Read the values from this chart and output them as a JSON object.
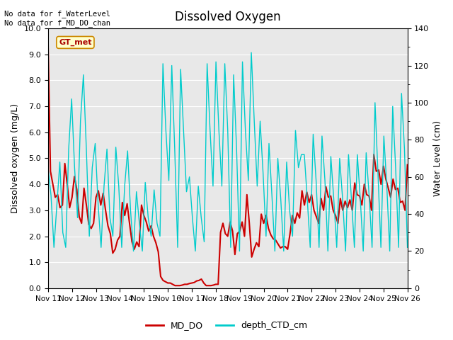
{
  "title": "Dissolved Oxygen",
  "ylabel_left": "Dissolved oxygen (mg/L)",
  "ylabel_right": "Water Level (cm)",
  "ylim_left": [
    0,
    10.0
  ],
  "ylim_right": [
    0,
    140
  ],
  "yticks_left": [
    0.0,
    1.0,
    2.0,
    3.0,
    4.0,
    5.0,
    6.0,
    7.0,
    8.0,
    9.0,
    10.0
  ],
  "yticks_right": [
    0,
    20,
    40,
    60,
    80,
    100,
    120,
    140
  ],
  "annotation_text": "No data for f_WaterLevel\nNo data for f_MD_DO_chan",
  "gt_met_label": "GT_met",
  "legend_entries": [
    "MD_DO",
    "depth_CTD_cm"
  ],
  "legend_colors": [
    "#cc0000",
    "#00cccc"
  ],
  "bg_color": "#e8e8e8",
  "xticklabels": [
    "Nov 11",
    "Nov 12",
    "Nov 13",
    "Nov 14",
    "Nov 15",
    "Nov 16",
    "Nov 17",
    "Nov 18",
    "Nov 19",
    "Nov 20",
    "Nov 21",
    "Nov 22",
    "Nov 23",
    "Nov 24",
    "Nov 25",
    "Nov 26"
  ],
  "md_do": [
    9.45,
    4.5,
    4.0,
    3.5,
    3.6,
    3.1,
    3.2,
    4.8,
    4.0,
    3.1,
    3.5,
    4.3,
    3.8,
    2.75,
    2.5,
    3.85,
    3.2,
    2.45,
    2.3,
    2.5,
    3.5,
    3.75,
    3.2,
    3.65,
    3.0,
    2.4,
    2.1,
    1.35,
    1.5,
    1.85,
    2.0,
    3.3,
    2.8,
    3.25,
    2.5,
    1.8,
    1.5,
    1.78,
    1.6,
    3.2,
    2.8,
    2.55,
    2.2,
    2.4,
    2.0,
    1.75,
    1.4,
    0.45,
    0.3,
    0.25,
    0.2,
    0.2,
    0.15,
    0.1,
    0.1,
    0.1,
    0.12,
    0.15,
    0.15,
    0.18,
    0.2,
    0.22,
    0.28,
    0.3,
    0.35,
    0.2,
    0.1,
    0.1,
    0.1,
    0.12,
    0.15,
    0.15,
    2.15,
    2.5,
    2.1,
    2.0,
    2.55,
    2.2,
    1.3,
    2.1,
    2.2,
    2.55,
    2.0,
    3.6,
    2.5,
    1.2,
    1.5,
    1.75,
    1.6,
    2.85,
    2.5,
    2.8,
    2.3,
    2.05,
    1.9,
    1.85,
    1.7,
    1.55,
    1.6,
    1.6,
    1.5,
    2.1,
    2.8,
    2.5,
    2.9,
    2.7,
    3.75,
    3.2,
    3.7,
    3.3,
    3.6,
    3.0,
    2.75,
    2.5,
    3.45,
    3.0,
    3.9,
    3.5,
    3.55,
    3.0,
    2.8,
    2.5,
    3.45,
    3.0,
    3.35,
    3.1,
    3.4,
    3.0,
    4.05,
    3.6,
    3.55,
    3.2,
    4.0,
    3.6,
    3.55,
    3.0,
    5.15,
    4.5,
    4.55,
    4.0,
    4.7,
    4.2,
    3.85,
    3.5,
    4.2,
    3.8,
    3.85,
    3.3,
    3.35,
    3.0,
    4.75
  ],
  "depth_ctd": [
    65,
    50,
    22,
    45,
    68,
    30,
    22,
    75,
    102,
    65,
    38,
    90,
    115,
    75,
    28,
    65,
    78,
    45,
    22,
    55,
    75,
    38,
    28,
    76,
    55,
    22,
    55,
    74,
    42,
    20,
    52,
    35,
    20,
    57,
    38,
    28,
    53,
    35,
    28,
    121,
    85,
    58,
    120,
    75,
    22,
    118,
    85,
    52,
    60,
    38,
    20,
    55,
    38,
    25,
    121,
    85,
    55,
    122,
    85,
    55,
    121,
    85,
    22,
    115,
    75,
    20,
    122,
    85,
    58,
    127,
    90,
    55,
    90,
    62,
    28,
    78,
    50,
    20,
    70,
    48,
    20,
    68,
    42,
    28,
    85,
    65,
    72,
    72,
    48,
    22,
    83,
    58,
    22,
    82,
    58,
    20,
    71,
    48,
    22,
    70,
    48,
    20,
    72,
    48,
    22,
    72,
    48,
    20,
    73,
    50,
    22,
    100,
    62,
    22,
    82,
    55,
    20,
    98,
    65,
    22,
    105,
    75,
    22
  ],
  "md_do_color": "#cc0000",
  "depth_ctd_color": "#00cccc"
}
